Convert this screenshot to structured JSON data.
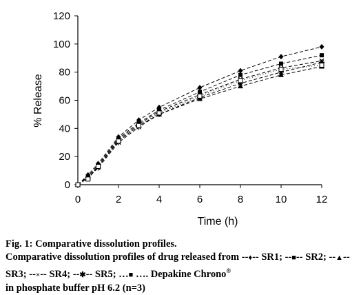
{
  "chart_data": {
    "type": "line",
    "xlabel": "Time (h)",
    "ylabel": "% Release",
    "xlim": [
      0,
      12
    ],
    "ylim": [
      0,
      120
    ],
    "x_ticks": [
      0,
      2,
      4,
      6,
      8,
      10,
      12
    ],
    "y_ticks": [
      0,
      20,
      40,
      60,
      80,
      100,
      120
    ],
    "grid": false,
    "legend": "none",
    "x": [
      0,
      0.5,
      1,
      2,
      3,
      4,
      6,
      8,
      10,
      12
    ],
    "series": [
      {
        "name": "SR1",
        "marker": "diamond",
        "dash": "5,3",
        "values": [
          0,
          7,
          15,
          34,
          46,
          55,
          69,
          81,
          91,
          98
        ]
      },
      {
        "name": "SR2",
        "marker": "square",
        "dash": "5,3",
        "values": [
          0,
          6,
          14,
          33,
          44,
          53,
          66,
          78,
          86,
          92
        ]
      },
      {
        "name": "SR3",
        "marker": "triangle",
        "dash": "5,3",
        "values": [
          0,
          5,
          13,
          31,
          42,
          50,
          61,
          70,
          78,
          84
        ]
      },
      {
        "name": "SR4",
        "marker": "x",
        "dash": "5,3",
        "values": [
          0,
          5,
          13,
          32,
          43,
          52,
          64,
          75,
          83,
          88
        ]
      },
      {
        "name": "SR5",
        "marker": "star",
        "dash": "5,3",
        "values": [
          0,
          5,
          12,
          30,
          41,
          50,
          62,
          72,
          80,
          87
        ]
      },
      {
        "name": "Depakine Chrono",
        "marker": "square-open",
        "dash": "1,3",
        "values": [
          0,
          4,
          13,
          31,
          42,
          51,
          63,
          74,
          82,
          85
        ]
      }
    ]
  },
  "caption": {
    "line1": "Fig. 1: Comparative dissolution profiles.",
    "line2_prefix": "Comparative dissolution profiles of drug released from",
    "legend_items": [
      {
        "pre": " --",
        "glyph": "♦",
        "post": "-- SR1;"
      },
      {
        "pre": " --",
        "glyph": "■",
        "post": "-- SR2;"
      },
      {
        "pre": " --",
        "glyph": "▲",
        "post": "-- SR3;"
      },
      {
        "pre": " --",
        "glyph": "×",
        "post": "-- SR4;"
      },
      {
        "pre": " --",
        "glyph": "✱",
        "post": "-- SR5;"
      },
      {
        "pre": " …",
        "glyph": "■",
        "post": " …. Depakine Chrono"
      }
    ],
    "registered": "®",
    "tail": "in phosphate buffer pH 6.2 (n=3)"
  }
}
